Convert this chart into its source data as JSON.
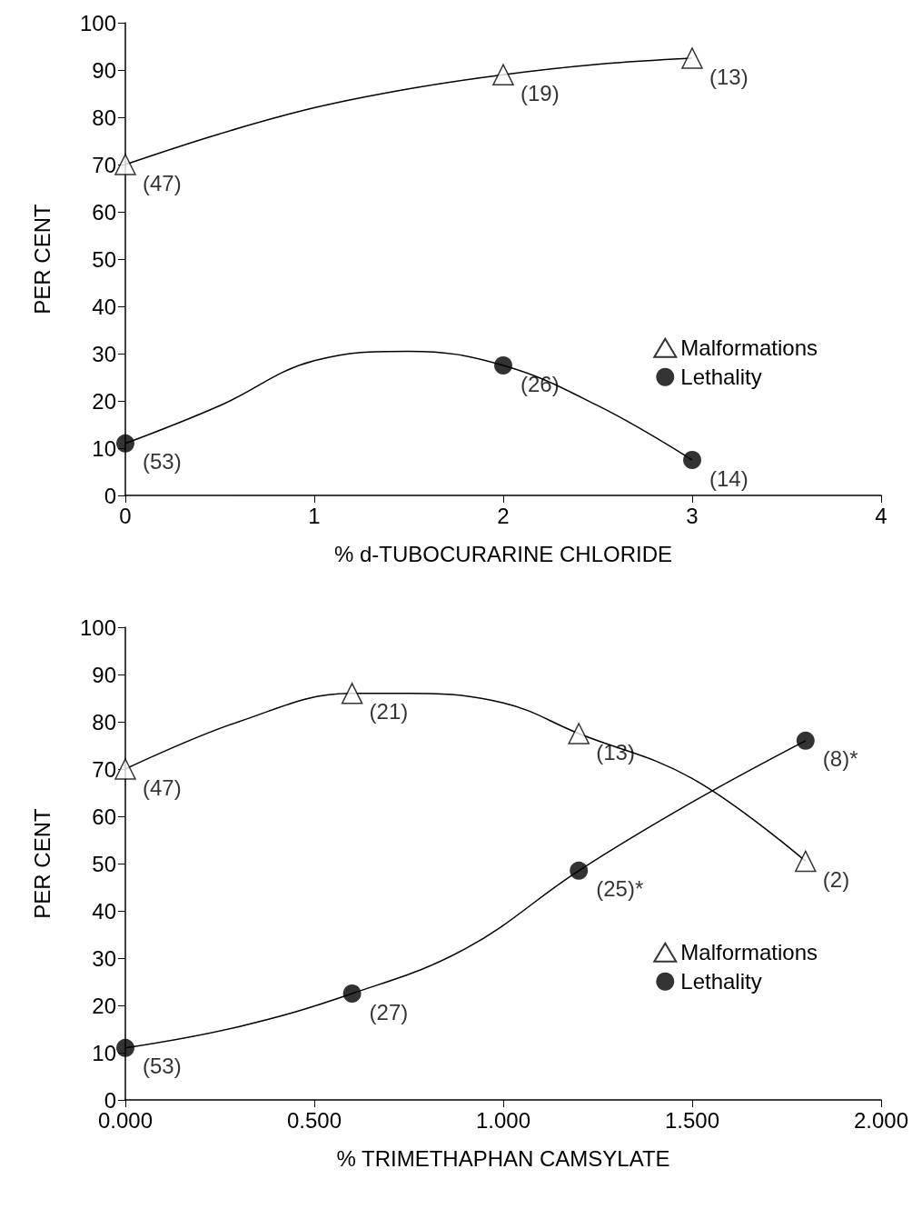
{
  "chart_data": [
    {
      "type": "scatter",
      "xlabel": "% d-TUBOCURARINE CHLORIDE",
      "ylabel": "PER CENT",
      "xlim": [
        0,
        4
      ],
      "xticks": [
        0,
        1,
        2,
        3,
        4
      ],
      "ylim": [
        0,
        100
      ],
      "yticks": [
        0,
        10,
        20,
        30,
        40,
        50,
        60,
        70,
        80,
        90,
        100
      ],
      "grid": false,
      "legend": "right",
      "series": [
        {
          "name": "Malformations",
          "type": "scatter",
          "marker": "triangle",
          "color": "#000000",
          "x": [
            0,
            2,
            3
          ],
          "values": [
            70,
            89,
            92.5
          ]
        },
        {
          "name": "Lethality",
          "type": "scatter",
          "marker": "circle",
          "color": "#000000",
          "x": [
            0,
            2,
            3
          ],
          "values": [
            11,
            27.5,
            7.5
          ]
        },
        {
          "type": "line",
          "marker": "none",
          "color": "#000000",
          "x": [
            0,
            0.5,
            1,
            1.5,
            2,
            2.5,
            3
          ],
          "values": [
            70,
            76.5,
            82,
            86,
            89,
            91.2,
            92.5
          ]
        },
        {
          "type": "line",
          "marker": "none",
          "color": "#000000",
          "x": [
            0,
            0.5,
            1,
            1.5,
            2,
            2.5,
            3
          ],
          "values": [
            11,
            19,
            28.5,
            30.5,
            27.5,
            19,
            7.5
          ]
        }
      ],
      "annotations": [
        {
          "text": "(47)",
          "x": 0,
          "y": 70
        },
        {
          "text": "(19)",
          "x": 2,
          "y": 89
        },
        {
          "text": "(13)",
          "x": 3,
          "y": 92.5
        },
        {
          "text": "(53)",
          "x": 0,
          "y": 11
        },
        {
          "text": "(26)",
          "x": 2,
          "y": 27.5
        },
        {
          "text": "(14)",
          "x": 3,
          "y": 7.5
        }
      ]
    },
    {
      "type": "scatter",
      "xlabel": "% TRIMETHAPHAN CAMSYLATE",
      "ylabel": "PER CENT",
      "xlim": [
        0,
        2
      ],
      "xticks": [
        {
          "value": 0,
          "label": "0.000"
        },
        {
          "value": 0.5,
          "label": "0.500"
        },
        {
          "value": 1,
          "label": "1.000"
        },
        {
          "value": 1.5,
          "label": "1.500"
        },
        {
          "value": 2,
          "label": "2.000"
        }
      ],
      "ylim": [
        0,
        100
      ],
      "yticks": [
        0,
        10,
        20,
        30,
        40,
        50,
        60,
        70,
        80,
        90,
        100
      ],
      "grid": false,
      "legend": "right",
      "series": [
        {
          "name": "Malformations",
          "type": "scatter",
          "marker": "triangle",
          "color": "#000000",
          "x": [
            0,
            0.6,
            1.2,
            1.8
          ],
          "values": [
            70,
            86,
            77.5,
            50.5
          ]
        },
        {
          "name": "Lethality",
          "type": "scatter",
          "marker": "circle",
          "color": "#000000",
          "x": [
            0,
            0.6,
            1.2,
            1.8
          ],
          "values": [
            11,
            22.5,
            48.5,
            76
          ]
        },
        {
          "type": "line",
          "marker": "none",
          "color": "#000000",
          "x": [
            0,
            0.3,
            0.6,
            0.75,
            1,
            1.2,
            1.5,
            1.8
          ],
          "values": [
            70,
            80,
            86,
            86,
            84,
            77.5,
            68,
            50.5
          ]
        },
        {
          "type": "line",
          "marker": "none",
          "color": "#000000",
          "x": [
            0,
            0.3,
            0.6,
            0.9,
            1.2,
            1.5,
            1.8
          ],
          "values": [
            11,
            15.5,
            22.5,
            32,
            48.5,
            63,
            76
          ]
        }
      ],
      "annotations": [
        {
          "text": "(47)",
          "x": 0,
          "y": 70
        },
        {
          "text": "(21)",
          "x": 0.6,
          "y": 86
        },
        {
          "text": "(13)",
          "x": 1.2,
          "y": 77.5
        },
        {
          "text": "(2)",
          "x": 1.8,
          "y": 50.5
        },
        {
          "text": "(53)",
          "x": 0,
          "y": 11
        },
        {
          "text": "(27)",
          "x": 0.6,
          "y": 22.5
        },
        {
          "text": "(25)*",
          "x": 1.2,
          "y": 48.5
        },
        {
          "text": "(8)*",
          "x": 1.8,
          "y": 76
        }
      ]
    }
  ]
}
